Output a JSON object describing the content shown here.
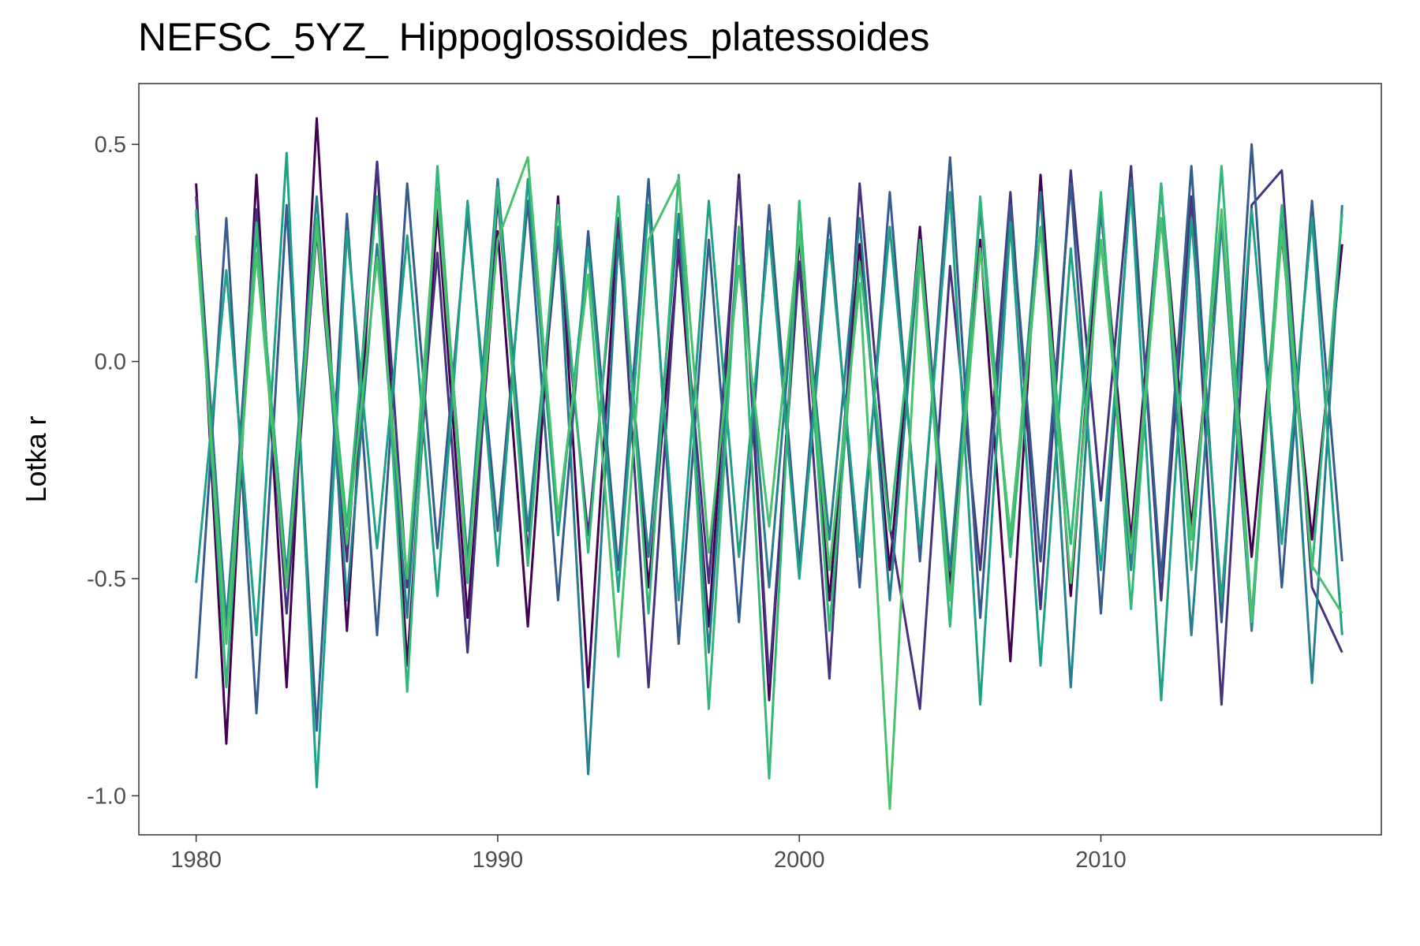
{
  "chart_data": {
    "type": "line",
    "title": "NEFSC_5YZ_ Hippoglossoides_platessoides",
    "xlabel": "",
    "ylabel": "Lotka r",
    "xlim": [
      1978.1,
      2019.3
    ],
    "ylim": [
      -1.09,
      0.64
    ],
    "x_ticks": [
      1980,
      1990,
      2000,
      2010
    ],
    "y_ticks": [
      0.5,
      0.0,
      -0.5,
      -1.0
    ],
    "y_tick_labels": [
      "0.5",
      "0.0",
      "-0.5",
      "-1.0"
    ],
    "x": [
      1980,
      1981,
      1982,
      1983,
      1984,
      1985,
      1986,
      1987,
      1988,
      1989,
      1990,
      1991,
      1992,
      1993,
      1994,
      1995,
      1996,
      1997,
      1998,
      1999,
      2000,
      2001,
      2002,
      2003,
      2004,
      2005,
      2006,
      2007,
      2008,
      2009,
      2010,
      2011,
      2012,
      2013,
      2014,
      2015,
      2016,
      2017,
      2018
    ],
    "grid": false,
    "legend": "none",
    "color_scale": [
      "#440154",
      "#46327e",
      "#365c8d",
      "#277f8e",
      "#1fa187",
      "#35b779",
      "#4ac16d"
    ],
    "series_note_visible": false,
    "series": [
      {
        "values": [
          0.41,
          -0.88,
          0.43,
          -0.75,
          0.56,
          -0.62,
          0.46,
          -0.7,
          0.35,
          -0.59,
          0.3,
          -0.61,
          0.38,
          -0.75,
          0.33,
          -0.52,
          0.26,
          -0.61,
          0.43,
          -0.78,
          0.29,
          -0.55,
          0.27,
          -0.48,
          0.31,
          -0.52,
          0.28,
          -0.69,
          0.43,
          -0.54,
          0.35,
          -0.41,
          0.4,
          -0.38,
          0.32,
          -0.45,
          0.29,
          -0.41,
          0.27
        ]
      },
      {
        "values": [
          0.38,
          -0.62,
          0.35,
          -0.58,
          0.3,
          -0.46,
          0.46,
          -0.52,
          0.25,
          -0.67,
          0.38,
          -0.44,
          0.29,
          -0.4,
          0.33,
          -0.75,
          0.28,
          -0.51,
          0.42,
          -0.74,
          0.23,
          -0.73,
          0.41,
          -0.38,
          -0.8,
          0.22,
          -0.48,
          0.39,
          -0.57,
          0.44,
          -0.32,
          0.45,
          -0.55,
          0.38,
          -0.79,
          0.36,
          0.44,
          -0.52,
          -0.67
        ]
      },
      {
        "values": [
          -0.73,
          0.33,
          -0.81,
          0.36,
          -0.85,
          0.34,
          -0.63,
          0.41,
          -0.43,
          0.34,
          -0.39,
          0.37,
          -0.55,
          0.3,
          -0.48,
          0.42,
          -0.65,
          0.28,
          -0.6,
          0.36,
          -0.47,
          0.33,
          -0.52,
          0.39,
          -0.46,
          0.47,
          -0.59,
          0.36,
          -0.46,
          0.41,
          -0.58,
          0.42,
          -0.5,
          0.45,
          -0.6,
          0.5,
          -0.52,
          0.37,
          -0.46
        ]
      },
      {
        "values": [
          0.34,
          -0.6,
          0.3,
          -0.49,
          0.38,
          -0.55,
          0.27,
          -0.59,
          0.4,
          -0.46,
          0.42,
          -0.39,
          0.31,
          -0.95,
          0.28,
          -0.45,
          0.34,
          -0.67,
          0.31,
          -0.52,
          0.3,
          -0.41,
          0.33,
          -0.55,
          0.27,
          -0.48,
          0.35,
          -0.44,
          0.39,
          -0.75,
          0.36,
          -0.48,
          0.41,
          -0.63,
          0.32,
          -0.62,
          0.35,
          -0.74,
          0.36
        ]
      },
      {
        "values": [
          -0.51,
          0.21,
          -0.63,
          0.48,
          -0.98,
          0.3,
          -0.43,
          0.29,
          -0.54,
          0.37,
          -0.47,
          0.42,
          -0.4,
          0.26,
          -0.53,
          0.36,
          -0.55,
          0.37,
          -0.45,
          0.3,
          -0.5,
          0.28,
          -0.45,
          0.31,
          -0.42,
          0.39,
          -0.79,
          0.32,
          -0.7,
          0.26,
          -0.48,
          0.4,
          -0.78,
          0.33,
          -0.55,
          0.35,
          -0.42,
          0.33,
          -0.63
        ]
      },
      {
        "values": [
          0.35,
          -0.75,
          0.32,
          -0.52,
          0.33,
          -0.38,
          0.38,
          -0.76,
          0.45,
          -0.51,
          0.4,
          -0.47,
          0.36,
          -0.44,
          0.38,
          -0.58,
          0.43,
          -0.8,
          0.31,
          -0.96,
          0.37,
          -0.62,
          0.23,
          -0.39,
          0.28,
          -0.61,
          0.38,
          -0.45,
          0.31,
          -0.42,
          0.39,
          -0.57,
          0.41,
          -0.48,
          0.45,
          -0.59,
          0.36,
          -0.48,
          0.34
        ]
      },
      {
        "values": [
          0.29,
          -0.65,
          0.25,
          -0.52,
          0.31,
          -0.42,
          0.24,
          -0.5,
          0.39,
          -0.49,
          0.28,
          0.47,
          -0.36,
          0.2,
          -0.68,
          0.28,
          0.42,
          -0.44,
          0.22,
          -0.38,
          0.3,
          -0.48,
          0.18,
          -1.03,
          0.24,
          -0.55,
          0.26,
          -0.4,
          0.31,
          -0.51,
          0.28,
          -0.44,
          0.33,
          -0.41,
          0.35,
          -0.6,
          0.3,
          -0.47,
          -0.58
        ]
      }
    ]
  }
}
